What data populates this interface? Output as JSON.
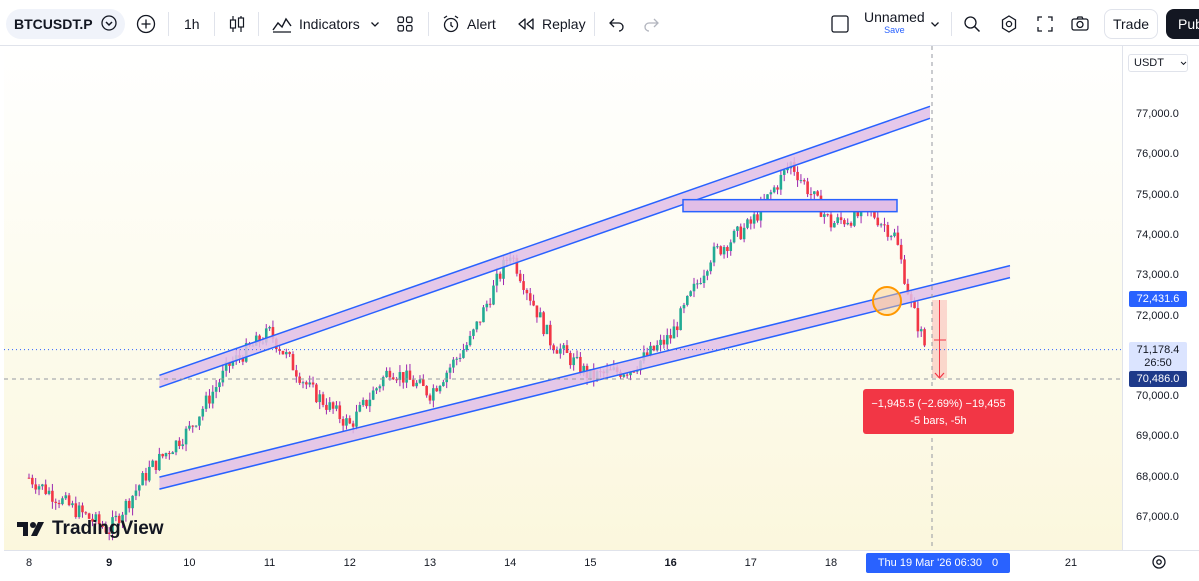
{
  "toolbar": {
    "symbol": "BTCUSDT.P",
    "timeframe": "1h",
    "indicators_label": "Indicators",
    "alert_label": "Alert",
    "replay_label": "Replay",
    "layout_name": "Unnamed",
    "save_label": "Save",
    "trade_label": "Trade",
    "publish_label": "Pub"
  },
  "price_axis": {
    "currency": "USDT",
    "ticks": [
      "77,000.0",
      "76,000.0",
      "75,000.0",
      "74,000.0",
      "73,000.0",
      "72,000.0",
      "70,000.0",
      "69,000.0",
      "68,000.0",
      "67,000.0"
    ],
    "labels": {
      "alert_price": "72,431.6",
      "current_price": "71,178.4",
      "countdown": "26:50",
      "crosshair_price": "70,486.0"
    }
  },
  "time_axis": {
    "ticks": [
      "8",
      "9",
      "10",
      "11",
      "12",
      "13",
      "14",
      "15",
      "16",
      "17",
      "18",
      "21"
    ],
    "bold_ticks": [
      "9",
      "16"
    ],
    "crosshair_time": "Thu 19 Mar '26   06:30",
    "crosshair_suffix": "0"
  },
  "measure": {
    "line1": "−1,945.5 (−2.69%) −19,455",
    "line2": "-5 bars, -5h",
    "color": "#f23645"
  },
  "branding": {
    "logo_text": "TradingView"
  },
  "colors": {
    "channel_line": "#2962ff",
    "channel_fill": "#e1bee7",
    "candle_up": "#22ab94",
    "candle_down": "#f23645",
    "wick": "#9c27b0"
  },
  "chart_data": {
    "type": "candlestick",
    "symbol": "BTCUSDT.P",
    "interval": "1h",
    "ylim": [
      66500,
      78000
    ],
    "current_price": 71178.4,
    "x_ticks": [
      "8",
      "9",
      "10",
      "11",
      "12",
      "13",
      "14",
      "15",
      "16",
      "17",
      "18",
      "21"
    ],
    "price_path": [
      {
        "t": "8",
        "p": 68000
      },
      {
        "t": "8.5",
        "p": 67300
      },
      {
        "t": "9",
        "p": 66700
      },
      {
        "t": "9.5",
        "p": 68200
      },
      {
        "t": "10",
        "p": 69200
      },
      {
        "t": "10.5",
        "p": 70800
      },
      {
        "t": "11",
        "p": 71600
      },
      {
        "t": "11.5",
        "p": 70200
      },
      {
        "t": "12",
        "p": 69300
      },
      {
        "t": "12.5",
        "p": 70700
      },
      {
        "t": "13",
        "p": 70100
      },
      {
        "t": "13.5",
        "p": 71400
      },
      {
        "t": "14",
        "p": 73600
      },
      {
        "t": "14.5",
        "p": 71400
      },
      {
        "t": "15",
        "p": 70500
      },
      {
        "t": "15.5",
        "p": 70700
      },
      {
        "t": "16",
        "p": 71500
      },
      {
        "t": "16.5",
        "p": 73500
      },
      {
        "t": "17",
        "p": 74300
      },
      {
        "t": "17.5",
        "p": 75800
      },
      {
        "t": "18",
        "p": 74300
      },
      {
        "t": "18.5",
        "p": 74600
      },
      {
        "t": "18.8",
        "p": 74000
      },
      {
        "t": "19",
        "p": 72300
      },
      {
        "t": "19.2",
        "p": 71100
      }
    ],
    "drawings": {
      "upper_channel": [
        [
          10,
          70800
        ],
        [
          19.5,
          77400
        ]
      ],
      "lower_channel": [
        [
          10,
          68200
        ],
        [
          19.5,
          72900
        ]
      ],
      "resistance_zone": [
        74500,
        74800
      ],
      "marked_point": [
        19,
        72300
      ]
    }
  }
}
